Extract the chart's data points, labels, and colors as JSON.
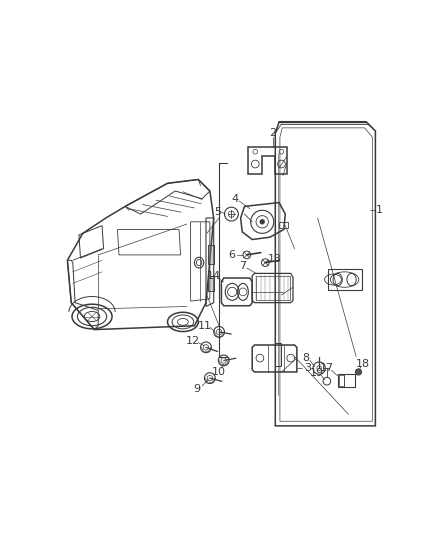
{
  "bg_color": "#ffffff",
  "line_color": "#3a3a3a",
  "fig_width": 4.38,
  "fig_height": 5.33,
  "dpi": 100
}
